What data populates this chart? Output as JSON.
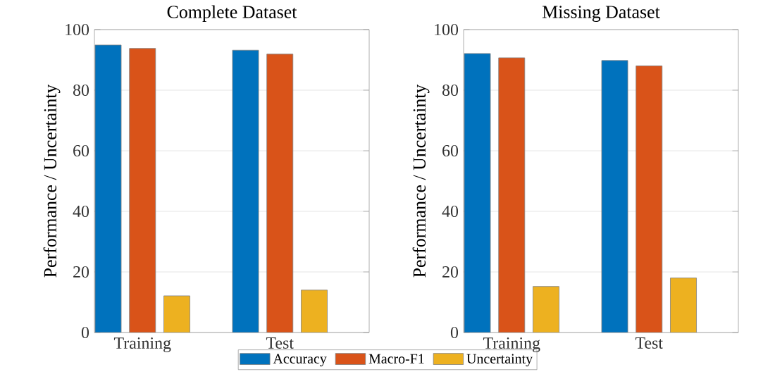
{
  "chart_data": [
    {
      "type": "bar",
      "title": "Complete Dataset",
      "ylabel": "Performance / Uncertainty",
      "categories": [
        "Training",
        "Test"
      ],
      "ylim": [
        0,
        100
      ],
      "yticks": [
        0,
        20,
        40,
        60,
        80,
        100
      ],
      "grid": "y",
      "legend": "bottom",
      "series": [
        {
          "name": "Accuracy",
          "color": "#0072bd",
          "values": [
            94.9,
            93.2
          ]
        },
        {
          "name": "Macro-F1",
          "color": "#d95319",
          "values": [
            93.8,
            91.9
          ]
        },
        {
          "name": "Uncertainty",
          "color": "#edb120",
          "values": [
            12.1,
            14.0
          ]
        }
      ]
    },
    {
      "type": "bar",
      "title": "Missing Dataset",
      "ylabel": "Performance / Uncertainty",
      "categories": [
        "Training",
        "Test"
      ],
      "ylim": [
        0,
        100
      ],
      "yticks": [
        0,
        20,
        40,
        60,
        80,
        100
      ],
      "grid": "y",
      "series": [
        {
          "color": "#0072bd",
          "values": [
            92.1,
            89.8
          ]
        },
        {
          "color": "#d95319",
          "values": [
            90.7,
            88.0
          ]
        },
        {
          "color": "#edb120",
          "values": [
            15.2,
            18.0
          ]
        }
      ]
    }
  ]
}
